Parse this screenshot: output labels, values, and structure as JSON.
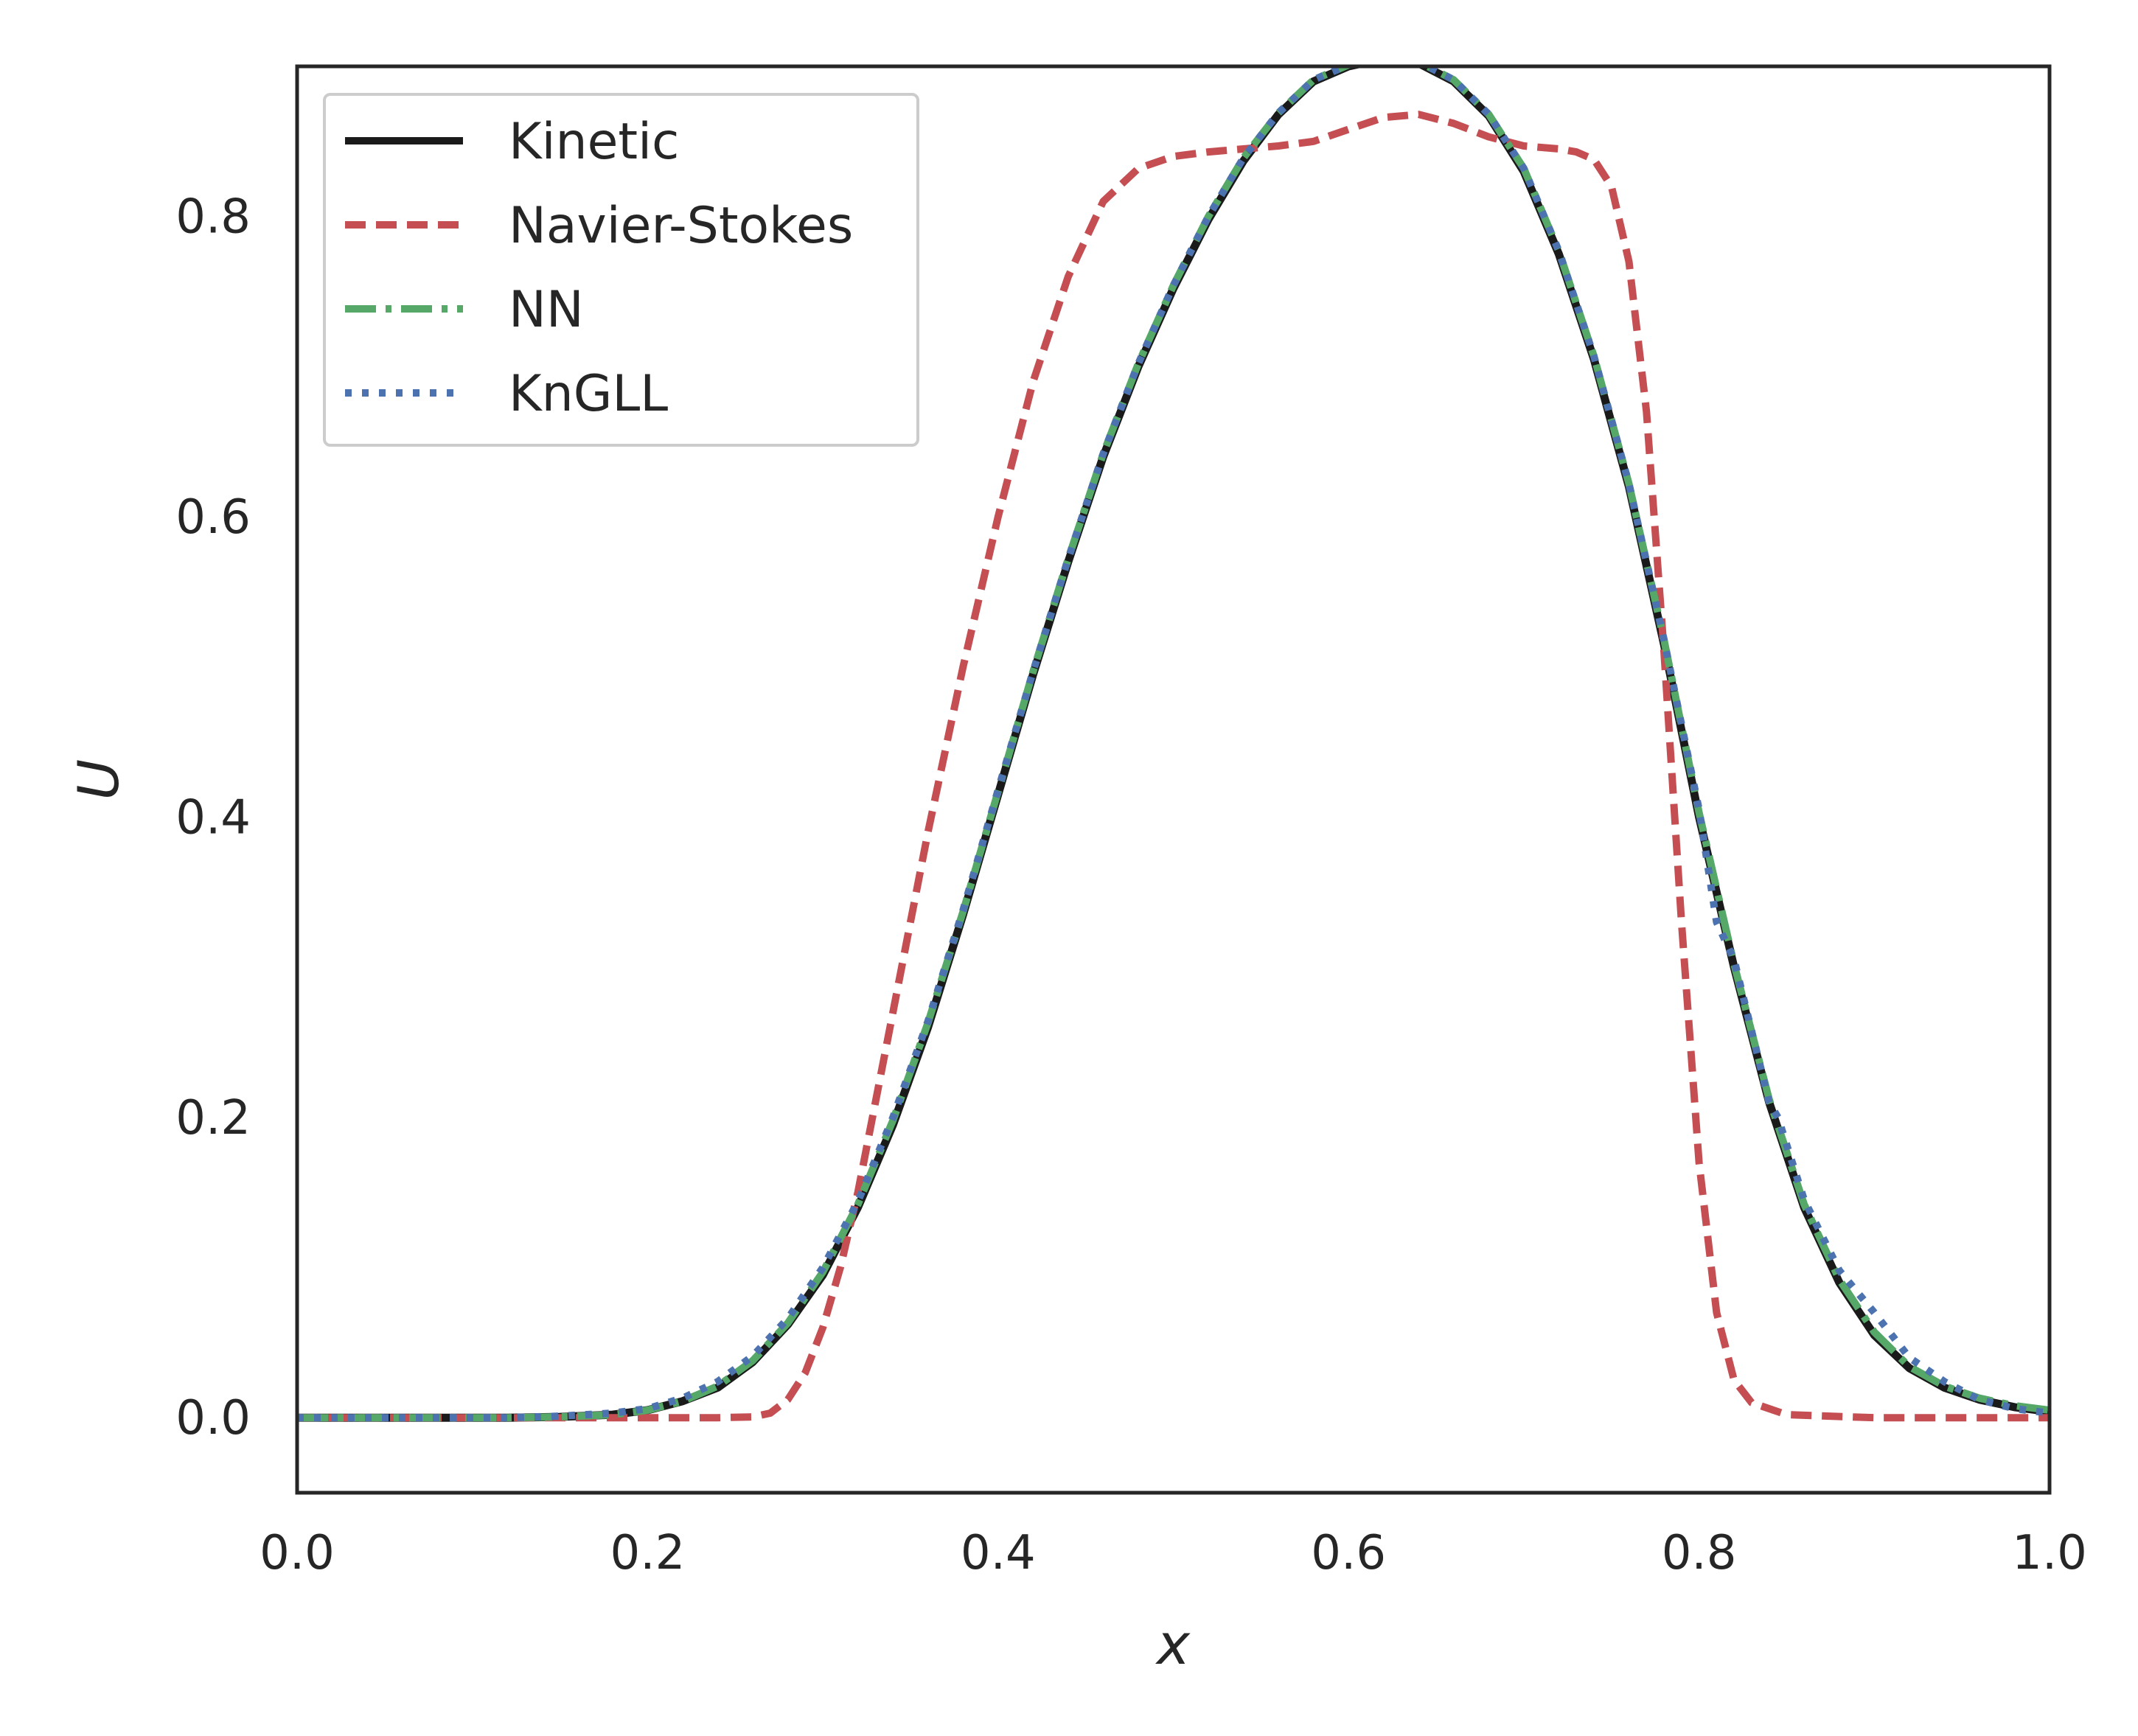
{
  "chart_data": {
    "type": "line",
    "xlabel": "x",
    "ylabel": "U",
    "xlim": [
      0.0,
      1.0
    ],
    "ylim": [
      -0.05,
      0.9
    ],
    "x_ticks": [
      "0.0",
      "0.2",
      "0.4",
      "0.6",
      "0.8",
      "1.0"
    ],
    "y_ticks": [
      "0.0",
      "0.2",
      "0.4",
      "0.6",
      "0.8"
    ],
    "grid": false,
    "legend_position": "top-left",
    "series": [
      {
        "name": "Kinetic",
        "color": "#1a1a1a",
        "style": "solid",
        "points": [
          [
            0.0,
            0.0
          ],
          [
            0.12,
            0.0
          ],
          [
            0.15,
            0.0005
          ],
          [
            0.18,
            0.002
          ],
          [
            0.2,
            0.005
          ],
          [
            0.22,
            0.011
          ],
          [
            0.24,
            0.02
          ],
          [
            0.26,
            0.037
          ],
          [
            0.28,
            0.062
          ],
          [
            0.3,
            0.095
          ],
          [
            0.32,
            0.14
          ],
          [
            0.34,
            0.195
          ],
          [
            0.36,
            0.26
          ],
          [
            0.38,
            0.335
          ],
          [
            0.4,
            0.415
          ],
          [
            0.42,
            0.495
          ],
          [
            0.44,
            0.57
          ],
          [
            0.46,
            0.64
          ],
          [
            0.48,
            0.7
          ],
          [
            0.5,
            0.752
          ],
          [
            0.52,
            0.798
          ],
          [
            0.54,
            0.837
          ],
          [
            0.56,
            0.868
          ],
          [
            0.58,
            0.89
          ],
          [
            0.6,
            0.9
          ],
          [
            0.62,
            0.905
          ],
          [
            0.64,
            0.902
          ],
          [
            0.66,
            0.89
          ],
          [
            0.68,
            0.867
          ],
          [
            0.7,
            0.83
          ],
          [
            0.72,
            0.775
          ],
          [
            0.74,
            0.705
          ],
          [
            0.76,
            0.62
          ],
          [
            0.78,
            0.515
          ],
          [
            0.8,
            0.4
          ],
          [
            0.82,
            0.3
          ],
          [
            0.84,
            0.21
          ],
          [
            0.86,
            0.14
          ],
          [
            0.88,
            0.09
          ],
          [
            0.9,
            0.055
          ],
          [
            0.92,
            0.033
          ],
          [
            0.94,
            0.02
          ],
          [
            0.96,
            0.012
          ],
          [
            0.98,
            0.007
          ],
          [
            1.0,
            0.004
          ]
        ]
      },
      {
        "name": "Navier-Stokes",
        "color": "#c44e52",
        "style": "dashed",
        "points": [
          [
            0.0,
            0.0
          ],
          [
            0.24,
            0.0
          ],
          [
            0.26,
            0.0005
          ],
          [
            0.27,
            0.003
          ],
          [
            0.28,
            0.012
          ],
          [
            0.29,
            0.03
          ],
          [
            0.3,
            0.06
          ],
          [
            0.31,
            0.1
          ],
          [
            0.32,
            0.15
          ],
          [
            0.33,
            0.21
          ],
          [
            0.34,
            0.27
          ],
          [
            0.35,
            0.33
          ],
          [
            0.36,
            0.39
          ],
          [
            0.38,
            0.5
          ],
          [
            0.4,
            0.6
          ],
          [
            0.42,
            0.69
          ],
          [
            0.44,
            0.76
          ],
          [
            0.46,
            0.81
          ],
          [
            0.48,
            0.832
          ],
          [
            0.5,
            0.84
          ],
          [
            0.52,
            0.843
          ],
          [
            0.54,
            0.845
          ],
          [
            0.56,
            0.847
          ],
          [
            0.58,
            0.85
          ],
          [
            0.6,
            0.858
          ],
          [
            0.62,
            0.866
          ],
          [
            0.64,
            0.868
          ],
          [
            0.66,
            0.862
          ],
          [
            0.68,
            0.853
          ],
          [
            0.7,
            0.847
          ],
          [
            0.72,
            0.845
          ],
          [
            0.73,
            0.843
          ],
          [
            0.74,
            0.838
          ],
          [
            0.75,
            0.82
          ],
          [
            0.76,
            0.77
          ],
          [
            0.77,
            0.67
          ],
          [
            0.78,
            0.51
          ],
          [
            0.79,
            0.33
          ],
          [
            0.8,
            0.17
          ],
          [
            0.81,
            0.07
          ],
          [
            0.82,
            0.025
          ],
          [
            0.83,
            0.01
          ],
          [
            0.85,
            0.002
          ],
          [
            0.9,
            0.0
          ],
          [
            1.0,
            0.0
          ]
        ]
      },
      {
        "name": "NN",
        "color": "#55a868",
        "style": "dashdot",
        "points": [
          [
            0.0,
            0.0
          ],
          [
            0.12,
            0.0
          ],
          [
            0.15,
            0.0005
          ],
          [
            0.18,
            0.002
          ],
          [
            0.2,
            0.005
          ],
          [
            0.22,
            0.011
          ],
          [
            0.24,
            0.021
          ],
          [
            0.26,
            0.038
          ],
          [
            0.28,
            0.063
          ],
          [
            0.3,
            0.097
          ],
          [
            0.32,
            0.142
          ],
          [
            0.34,
            0.198
          ],
          [
            0.36,
            0.263
          ],
          [
            0.38,
            0.337
          ],
          [
            0.4,
            0.417
          ],
          [
            0.42,
            0.497
          ],
          [
            0.44,
            0.572
          ],
          [
            0.46,
            0.642
          ],
          [
            0.48,
            0.702
          ],
          [
            0.5,
            0.754
          ],
          [
            0.52,
            0.8
          ],
          [
            0.54,
            0.839
          ],
          [
            0.56,
            0.869
          ],
          [
            0.58,
            0.891
          ],
          [
            0.6,
            0.901
          ],
          [
            0.62,
            0.906
          ],
          [
            0.64,
            0.903
          ],
          [
            0.66,
            0.891
          ],
          [
            0.68,
            0.868
          ],
          [
            0.7,
            0.832
          ],
          [
            0.72,
            0.777
          ],
          [
            0.74,
            0.707
          ],
          [
            0.76,
            0.622
          ],
          [
            0.78,
            0.518
          ],
          [
            0.8,
            0.403
          ],
          [
            0.82,
            0.302
          ],
          [
            0.84,
            0.212
          ],
          [
            0.86,
            0.142
          ],
          [
            0.88,
            0.092
          ],
          [
            0.9,
            0.057
          ],
          [
            0.92,
            0.034
          ],
          [
            0.94,
            0.021
          ],
          [
            0.96,
            0.013
          ],
          [
            0.98,
            0.008
          ],
          [
            1.0,
            0.005
          ]
        ]
      },
      {
        "name": "KnGLL",
        "color": "#4c72b0",
        "style": "dotted",
        "points": [
          [
            0.0,
            0.0
          ],
          [
            0.12,
            0.0
          ],
          [
            0.15,
            0.001
          ],
          [
            0.18,
            0.003
          ],
          [
            0.2,
            0.006
          ],
          [
            0.22,
            0.013
          ],
          [
            0.24,
            0.024
          ],
          [
            0.26,
            0.041
          ],
          [
            0.28,
            0.066
          ],
          [
            0.3,
            0.1
          ],
          [
            0.32,
            0.144
          ],
          [
            0.34,
            0.2
          ],
          [
            0.36,
            0.264
          ],
          [
            0.38,
            0.338
          ],
          [
            0.4,
            0.418
          ],
          [
            0.42,
            0.497
          ],
          [
            0.44,
            0.572
          ],
          [
            0.46,
            0.642
          ],
          [
            0.48,
            0.702
          ],
          [
            0.5,
            0.754
          ],
          [
            0.52,
            0.8
          ],
          [
            0.54,
            0.839
          ],
          [
            0.56,
            0.869
          ],
          [
            0.58,
            0.891
          ],
          [
            0.6,
            0.901
          ],
          [
            0.62,
            0.906
          ],
          [
            0.64,
            0.903
          ],
          [
            0.66,
            0.891
          ],
          [
            0.68,
            0.868
          ],
          [
            0.7,
            0.832
          ],
          [
            0.72,
            0.777
          ],
          [
            0.74,
            0.707
          ],
          [
            0.76,
            0.622
          ],
          [
            0.78,
            0.518
          ],
          [
            0.8,
            0.405
          ],
          [
            0.81,
            0.33
          ],
          [
            0.82,
            0.305
          ],
          [
            0.84,
            0.21
          ],
          [
            0.845,
            0.2
          ],
          [
            0.86,
            0.145
          ],
          [
            0.88,
            0.098
          ],
          [
            0.9,
            0.07
          ],
          [
            0.92,
            0.04
          ],
          [
            0.94,
            0.024
          ],
          [
            0.96,
            0.012
          ],
          [
            0.98,
            0.006
          ],
          [
            1.0,
            0.003
          ]
        ]
      }
    ]
  }
}
